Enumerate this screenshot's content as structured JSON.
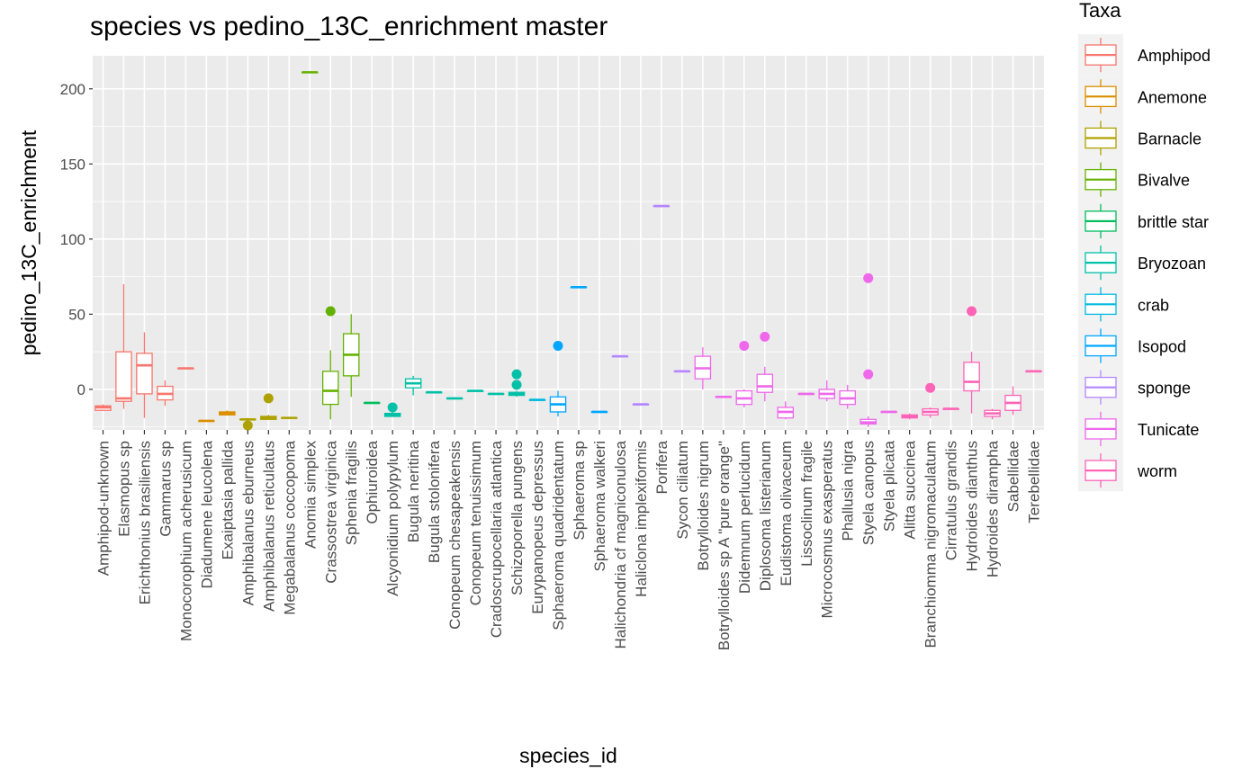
{
  "chart_data": {
    "type": "boxplot",
    "title": "species vs pedino_13C_enrichment master",
    "xlabel": "species_id",
    "ylabel": "pedino_13C_enrichment",
    "ylim": [
      -27,
      222
    ],
    "yticks": [
      0,
      50,
      100,
      150,
      200
    ],
    "grid": true,
    "legend": {
      "title": "Taxa",
      "position": "right"
    },
    "taxa": [
      {
        "name": "Amphipod",
        "color": "#F8766D"
      },
      {
        "name": "Anemone",
        "color": "#DB8E00"
      },
      {
        "name": "Barnacle",
        "color": "#AEA200"
      },
      {
        "name": "Bivalve",
        "color": "#64B200"
      },
      {
        "name": "brittle star",
        "color": "#00BD5C"
      },
      {
        "name": "Bryozoan",
        "color": "#00C1A7"
      },
      {
        "name": "crab",
        "color": "#00BADE"
      },
      {
        "name": "Isopod",
        "color": "#00A6FF"
      },
      {
        "name": "sponge",
        "color": "#B385FF"
      },
      {
        "name": "Tunicate",
        "color": "#EF67EB"
      },
      {
        "name": "worm",
        "color": "#FF63B6"
      }
    ],
    "species": [
      {
        "name": "Amphipod-unknown",
        "taxa": "Amphipod",
        "lo": -14,
        "q1": -14,
        "med": -12,
        "q3": -11,
        "hi": -10,
        "out": []
      },
      {
        "name": "Elasmopus sp",
        "taxa": "Amphipod",
        "lo": -13,
        "q1": -8,
        "med": -6,
        "q3": 25,
        "hi": 70,
        "out": []
      },
      {
        "name": "Erichthonius brasiliensis",
        "taxa": "Amphipod",
        "lo": -19,
        "q1": -3,
        "med": 16,
        "q3": 24,
        "hi": 38,
        "out": []
      },
      {
        "name": "Gammarus sp",
        "taxa": "Amphipod",
        "lo": -11,
        "q1": -7,
        "med": -3,
        "q3": 2,
        "hi": 6,
        "out": []
      },
      {
        "name": "Monocorophium acherusicum",
        "taxa": "Amphipod",
        "lo": 14,
        "q1": 14,
        "med": 14,
        "q3": 14,
        "hi": 14,
        "out": []
      },
      {
        "name": "Diadumene leucolena",
        "taxa": "Anemone",
        "lo": -21,
        "q1": -21,
        "med": -21,
        "q3": -21,
        "hi": -21,
        "out": []
      },
      {
        "name": "Exaiptasia pallida",
        "taxa": "Anemone",
        "lo": -17,
        "q1": -17,
        "med": -16,
        "q3": -15,
        "hi": -14,
        "out": []
      },
      {
        "name": "Amphibalanus eburneus",
        "taxa": "Barnacle",
        "lo": -21,
        "q1": -20,
        "med": -20,
        "q3": -20,
        "hi": -19,
        "out": [
          -24
        ]
      },
      {
        "name": "Amphibalanus reticulatus",
        "taxa": "Barnacle",
        "lo": -20,
        "q1": -20,
        "med": -19,
        "q3": -18,
        "hi": -17,
        "out": [
          -6
        ]
      },
      {
        "name": "Megabalanus coccopoma",
        "taxa": "Barnacle",
        "lo": -19,
        "q1": -19,
        "med": -19,
        "q3": -19,
        "hi": -19,
        "out": []
      },
      {
        "name": "Anomia simplex",
        "taxa": "Bivalve",
        "lo": 211,
        "q1": 211,
        "med": 211,
        "q3": 211,
        "hi": 211,
        "out": []
      },
      {
        "name": "Crassostrea virginica",
        "taxa": "Bivalve",
        "lo": -20,
        "q1": -10,
        "med": -1,
        "q3": 12,
        "hi": 26,
        "out": [
          52
        ]
      },
      {
        "name": "Sphenia fragilis",
        "taxa": "Bivalve",
        "lo": -5,
        "q1": 9,
        "med": 23,
        "q3": 37,
        "hi": 50,
        "out": []
      },
      {
        "name": "Ophiuroidea",
        "taxa": "brittle star",
        "lo": -9,
        "q1": -9,
        "med": -9,
        "q3": -9,
        "hi": -9,
        "out": []
      },
      {
        "name": "Alcyonidium polypylum",
        "taxa": "Bryozoan",
        "lo": -18,
        "q1": -18,
        "med": -17,
        "q3": -16,
        "hi": -15,
        "out": [
          -12
        ]
      },
      {
        "name": "Bugula neritina",
        "taxa": "Bryozoan",
        "lo": -4,
        "q1": 1,
        "med": 4,
        "q3": 7,
        "hi": 9,
        "out": []
      },
      {
        "name": "Bugula stolonifera",
        "taxa": "Bryozoan",
        "lo": -2,
        "q1": -2,
        "med": -2,
        "q3": -2,
        "hi": -2,
        "out": []
      },
      {
        "name": "Conopeum chesapeakensis",
        "taxa": "Bryozoan",
        "lo": -6,
        "q1": -6,
        "med": -6,
        "q3": -6,
        "hi": -6,
        "out": []
      },
      {
        "name": "Conopeum tenuissimum",
        "taxa": "Bryozoan",
        "lo": -1,
        "q1": -1,
        "med": -1,
        "q3": -1,
        "hi": -1,
        "out": []
      },
      {
        "name": "Cradoscrupocellaria atlantica",
        "taxa": "Bryozoan",
        "lo": -3,
        "q1": -3,
        "med": -3,
        "q3": -3,
        "hi": -3,
        "out": []
      },
      {
        "name": "Schizoporella pungens",
        "taxa": "Bryozoan",
        "lo": -5,
        "q1": -4,
        "med": -3,
        "q3": -2,
        "hi": -1,
        "out": [
          3,
          10
        ]
      },
      {
        "name": "Eurypanopeus depressus",
        "taxa": "crab",
        "lo": -7,
        "q1": -7,
        "med": -7,
        "q3": -7,
        "hi": -7,
        "out": []
      },
      {
        "name": "Sphaeroma quadridentatum",
        "taxa": "Isopod",
        "lo": -18,
        "q1": -15,
        "med": -10,
        "q3": -5,
        "hi": -1,
        "out": [
          29
        ]
      },
      {
        "name": "Sphaeroma sp",
        "taxa": "Isopod",
        "lo": 68,
        "q1": 68,
        "med": 68,
        "q3": 68,
        "hi": 68,
        "out": []
      },
      {
        "name": "Sphaeroma walkeri",
        "taxa": "Isopod",
        "lo": -15,
        "q1": -15,
        "med": -15,
        "q3": -15,
        "hi": -15,
        "out": []
      },
      {
        "name": "Halichondria cf magniconulosa",
        "taxa": "sponge",
        "lo": 22,
        "q1": 22,
        "med": 22,
        "q3": 22,
        "hi": 22,
        "out": []
      },
      {
        "name": "Haliclona implexiformis",
        "taxa": "sponge",
        "lo": -10,
        "q1": -10,
        "med": -10,
        "q3": -10,
        "hi": -10,
        "out": []
      },
      {
        "name": "Porifera",
        "taxa": "sponge",
        "lo": 122,
        "q1": 122,
        "med": 122,
        "q3": 122,
        "hi": 122,
        "out": []
      },
      {
        "name": "Sycon ciliatum",
        "taxa": "sponge",
        "lo": 12,
        "q1": 12,
        "med": 12,
        "q3": 12,
        "hi": 12,
        "out": []
      },
      {
        "name": "Botrylloides nigrum",
        "taxa": "Tunicate",
        "lo": 0,
        "q1": 7,
        "med": 14,
        "q3": 22,
        "hi": 28,
        "out": []
      },
      {
        "name": "Botrylloides sp A \"pure orange\"",
        "taxa": "Tunicate",
        "lo": -5,
        "q1": -5,
        "med": -5,
        "q3": -5,
        "hi": -5,
        "out": []
      },
      {
        "name": "Didemnum perlucidum",
        "taxa": "Tunicate",
        "lo": -12,
        "q1": -10,
        "med": -6,
        "q3": -1,
        "hi": 0,
        "out": [
          29
        ]
      },
      {
        "name": "Diplosoma listerianum",
        "taxa": "Tunicate",
        "lo": -8,
        "q1": -2,
        "med": 2,
        "q3": 10,
        "hi": 15,
        "out": [
          35
        ]
      },
      {
        "name": "Eudistoma olivaceum",
        "taxa": "Tunicate",
        "lo": -20,
        "q1": -19,
        "med": -15,
        "q3": -12,
        "hi": -8,
        "out": []
      },
      {
        "name": "Lissoclinum fragile",
        "taxa": "Tunicate",
        "lo": -3,
        "q1": -3,
        "med": -3,
        "q3": -3,
        "hi": -3,
        "out": []
      },
      {
        "name": "Microcosmus exasperatus",
        "taxa": "Tunicate",
        "lo": -8,
        "q1": -6,
        "med": -3,
        "q3": 0,
        "hi": 6,
        "out": []
      },
      {
        "name": "Phallusia nigra",
        "taxa": "Tunicate",
        "lo": -13,
        "q1": -10,
        "med": -6,
        "q3": -1,
        "hi": 3,
        "out": []
      },
      {
        "name": "Styela canopus",
        "taxa": "Tunicate",
        "lo": -25,
        "q1": -23,
        "med": -22,
        "q3": -20,
        "hi": -18,
        "out": [
          10,
          74
        ]
      },
      {
        "name": "Styela plicata",
        "taxa": "Tunicate",
        "lo": -15,
        "q1": -15,
        "med": -15,
        "q3": -15,
        "hi": -15,
        "out": []
      },
      {
        "name": "Alitta succinea",
        "taxa": "worm",
        "lo": -20,
        "q1": -19,
        "med": -18,
        "q3": -17,
        "hi": -16,
        "out": []
      },
      {
        "name": "Branchiomma nigromaculatum",
        "taxa": "worm",
        "lo": -19,
        "q1": -17,
        "med": -15,
        "q3": -13,
        "hi": -12,
        "out": [
          1
        ]
      },
      {
        "name": "Cirratulus grandis",
        "taxa": "worm",
        "lo": -13,
        "q1": -13,
        "med": -13,
        "q3": -13,
        "hi": -13,
        "out": []
      },
      {
        "name": "Hydroides dianthus",
        "taxa": "worm",
        "lo": -16,
        "q1": -1,
        "med": 5,
        "q3": 18,
        "hi": 25,
        "out": [
          52
        ]
      },
      {
        "name": "Hydroides dirampha",
        "taxa": "worm",
        "lo": -20,
        "q1": -18,
        "med": -16,
        "q3": -14,
        "hi": -13,
        "out": []
      },
      {
        "name": "Sabellidae",
        "taxa": "worm",
        "lo": -17,
        "q1": -14,
        "med": -9,
        "q3": -4,
        "hi": 2,
        "out": []
      },
      {
        "name": "Terebellidae",
        "taxa": "worm",
        "lo": 12,
        "q1": 12,
        "med": 12,
        "q3": 12,
        "hi": 12,
        "out": []
      }
    ]
  }
}
